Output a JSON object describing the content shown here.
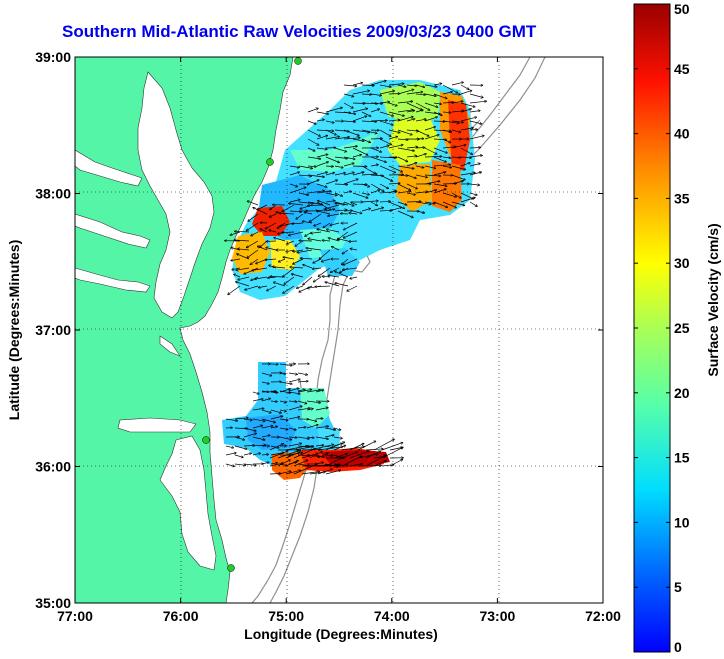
{
  "title": "Southern Mid-Atlantic Raw Velocities 2009/03/23 0400 GMT",
  "xlabel": "Longitude (Degrees:Minutes)",
  "ylabel": "Latitude (Degrees:Minutes)",
  "colorbar": {
    "label": "Surface Velocity (cm/s)",
    "min": 0,
    "max": 50,
    "ticks": [
      "0",
      "5",
      "10",
      "15",
      "20",
      "25",
      "30",
      "35",
      "40",
      "45",
      "50"
    ]
  },
  "x_ticks": [
    "77:00",
    "76:00",
    "75:00",
    "74:00",
    "73:00",
    "72:00"
  ],
  "y_ticks": [
    "39:00",
    "38:00",
    "37:00",
    "36:00",
    "35:00"
  ],
  "colors": {
    "land": "#55f5a8",
    "water": "#ffffff",
    "bathymetry": "#909090",
    "station": "#22cc22",
    "title": "#0000ee"
  },
  "map_extent": {
    "lon": [
      -77,
      -72
    ],
    "lat": [
      35,
      39
    ]
  }
}
